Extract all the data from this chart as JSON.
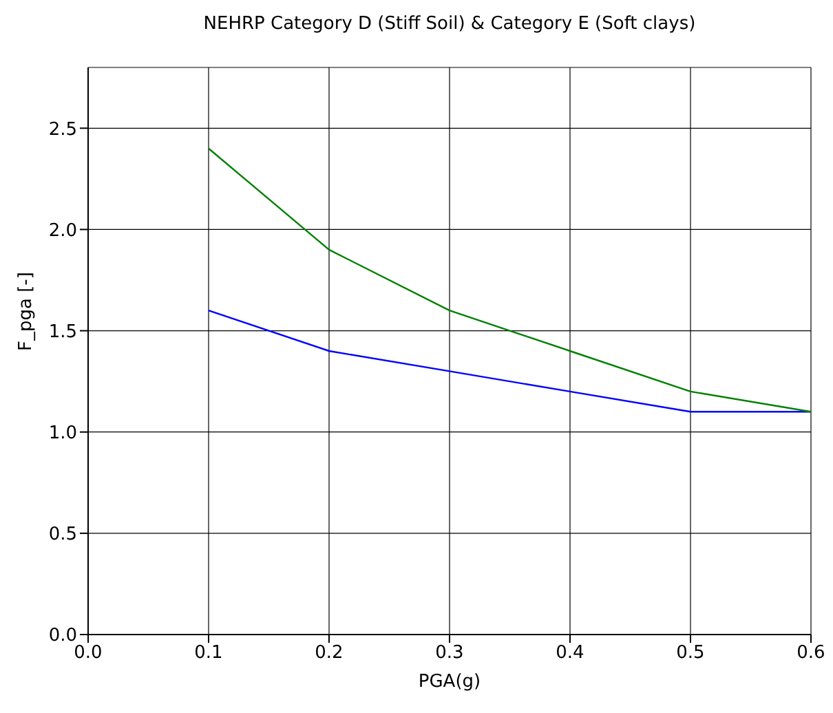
{
  "chart_data": {
    "type": "line",
    "title": "NEHRP Category D (Stiff Soil) & Category E (Soft clays)",
    "xlabel": "PGA(g)",
    "ylabel": "F_pga [-]",
    "x": [
      0.1,
      0.2,
      0.3,
      0.4,
      0.5,
      0.6
    ],
    "series": [
      {
        "color": "#0000ff",
        "values": [
          1.6,
          1.4,
          1.3,
          1.2,
          1.1,
          1.1
        ]
      },
      {
        "color": "#008000",
        "values": [
          2.4,
          1.9,
          1.6,
          1.4,
          1.2,
          1.1
        ]
      }
    ],
    "xlim": [
      0,
      0.6
    ],
    "xticks": [
      {
        "value": 0,
        "label": "0.0"
      },
      {
        "value": 0.1,
        "label": "0.1"
      },
      {
        "value": 0.2,
        "label": "0.2"
      },
      {
        "value": 0.3,
        "label": "0.3"
      },
      {
        "value": 0.4,
        "label": "0.4"
      },
      {
        "value": 0.5,
        "label": "0.5"
      },
      {
        "value": 0.6,
        "label": "0.6"
      }
    ],
    "ylim": [
      0,
      2.8
    ],
    "yticks": [
      {
        "value": 0,
        "label": "0.0"
      },
      {
        "value": 0.5,
        "label": "0.5"
      },
      {
        "value": 1,
        "label": "1.0"
      },
      {
        "value": 1.5,
        "label": "1.5"
      },
      {
        "value": 2,
        "label": "2.0"
      },
      {
        "value": 2.5,
        "label": "2.5"
      }
    ],
    "grid": true,
    "legend": false,
    "marker": "none",
    "line_style": "solid"
  }
}
